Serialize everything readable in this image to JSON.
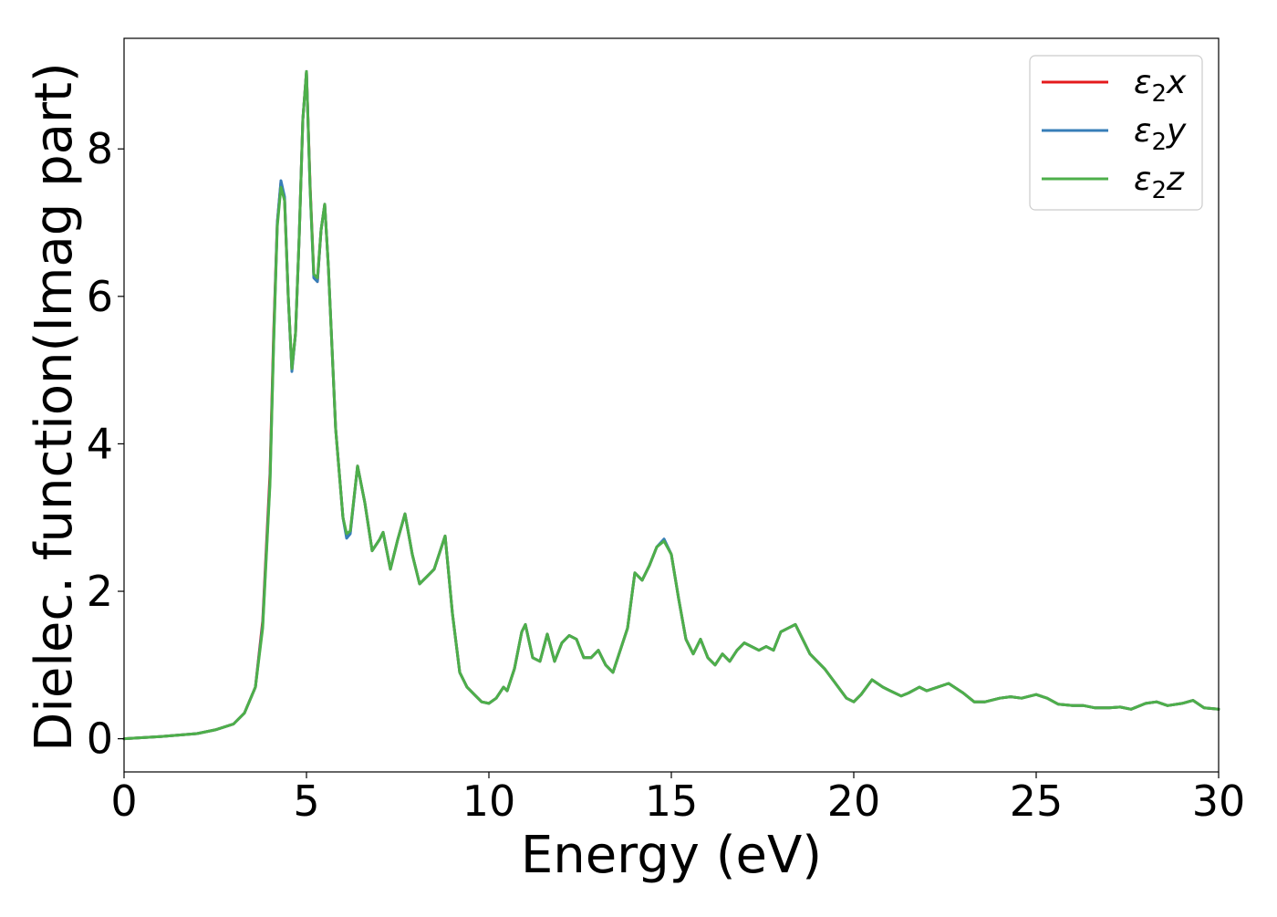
{
  "chart_data": {
    "type": "line",
    "xlabel": "Energy (eV)",
    "ylabel": "Dielec. function(Imag part)",
    "xlim": [
      0,
      30
    ],
    "ylim": [
      -0.45,
      9.5
    ],
    "xticks": [
      "0",
      "5",
      "10",
      "15",
      "20",
      "25",
      "30"
    ],
    "yticks": [
      "0",
      "2",
      "4",
      "6",
      "8"
    ],
    "grid": false,
    "legend_position": "top-right",
    "colors": {
      "x": "#e41a1c",
      "y": "#377eb8",
      "z": "#4daf4a"
    },
    "series": [
      {
        "name": "ε2x",
        "legend": {
          "base": "ε",
          "sub": "2",
          "var": "x"
        },
        "x": [
          0,
          1,
          2,
          2.5,
          3,
          3.3,
          3.6,
          3.8,
          4.0,
          4.1,
          4.2,
          4.3,
          4.4,
          4.5,
          4.6,
          4.7,
          4.8,
          4.9,
          5.0,
          5.1,
          5.2,
          5.3,
          5.4,
          5.5,
          5.6,
          5.8,
          6.0,
          6.1,
          6.2,
          6.4,
          6.6,
          6.8,
          7.0,
          7.1,
          7.3,
          7.5,
          7.7,
          7.9,
          8.1,
          8.3,
          8.5,
          8.7,
          8.8,
          9.0,
          9.2,
          9.4,
          9.6,
          9.8,
          10.0,
          10.2,
          10.4,
          10.5,
          10.7,
          10.9,
          11.0,
          11.2,
          11.4,
          11.6,
          11.8,
          12.0,
          12.2,
          12.4,
          12.6,
          12.8,
          13.0,
          13.2,
          13.4,
          13.6,
          13.8,
          14.0,
          14.2,
          14.4,
          14.6,
          14.8,
          15.0,
          15.2,
          15.4,
          15.6,
          15.8,
          16.0,
          16.2,
          16.4,
          16.6,
          16.8,
          17.0,
          17.2,
          17.4,
          17.6,
          17.8,
          18.0,
          18.2,
          18.4,
          18.6,
          18.8,
          19.0,
          19.2,
          19.5,
          19.8,
          20.0,
          20.2,
          20.5,
          20.8,
          21.0,
          21.3,
          21.5,
          21.8,
          22.0,
          22.3,
          22.6,
          23.0,
          23.3,
          23.6,
          24.0,
          24.3,
          24.6,
          25.0,
          25.3,
          25.6,
          26.0,
          26.3,
          26.6,
          27.0,
          27.3,
          27.6,
          28.0,
          28.3,
          28.6,
          29.0,
          29.3,
          29.6,
          30.0
        ],
        "y": [
          0.0,
          0.03,
          0.07,
          0.12,
          0.2,
          0.35,
          0.7,
          1.6,
          3.6,
          5.5,
          7.0,
          7.55,
          7.3,
          6.0,
          5.0,
          5.5,
          6.8,
          8.4,
          9.05,
          7.5,
          6.3,
          6.2,
          6.9,
          7.25,
          6.4,
          4.2,
          3.0,
          2.75,
          2.8,
          3.7,
          3.2,
          2.55,
          2.7,
          2.8,
          2.3,
          2.7,
          3.05,
          2.5,
          2.1,
          2.2,
          2.3,
          2.6,
          2.75,
          1.7,
          0.9,
          0.7,
          0.6,
          0.5,
          0.48,
          0.55,
          0.7,
          0.65,
          0.95,
          1.45,
          1.55,
          1.1,
          1.05,
          1.42,
          1.05,
          1.3,
          1.4,
          1.35,
          1.1,
          1.1,
          1.2,
          1.0,
          0.9,
          1.2,
          1.5,
          2.25,
          2.15,
          2.35,
          2.6,
          2.7,
          2.5,
          1.9,
          1.35,
          1.15,
          1.35,
          1.1,
          1.0,
          1.15,
          1.05,
          1.2,
          1.3,
          1.25,
          1.2,
          1.25,
          1.2,
          1.45,
          1.5,
          1.55,
          1.35,
          1.15,
          1.05,
          0.95,
          0.75,
          0.55,
          0.5,
          0.6,
          0.8,
          0.7,
          0.65,
          0.58,
          0.62,
          0.7,
          0.65,
          0.7,
          0.75,
          0.62,
          0.5,
          0.5,
          0.55,
          0.57,
          0.55,
          0.6,
          0.55,
          0.47,
          0.45,
          0.45,
          0.42,
          0.42,
          0.43,
          0.4,
          0.48,
          0.5,
          0.45,
          0.48,
          0.52,
          0.42,
          0.4
        ]
      },
      {
        "name": "ε2y",
        "legend": {
          "base": "ε",
          "sub": "2",
          "var": "y"
        },
        "x": [
          0,
          1,
          2,
          2.5,
          3,
          3.3,
          3.6,
          3.8,
          4.0,
          4.1,
          4.2,
          4.3,
          4.4,
          4.5,
          4.6,
          4.7,
          4.8,
          4.9,
          5.0,
          5.1,
          5.2,
          5.3,
          5.4,
          5.5,
          5.6,
          5.8,
          6.0,
          6.1,
          6.2,
          6.4,
          6.6,
          6.8,
          7.0,
          7.1,
          7.3,
          7.5,
          7.7,
          7.9,
          8.1,
          8.3,
          8.5,
          8.7,
          8.8,
          9.0,
          9.2,
          9.4,
          9.6,
          9.8,
          10.0,
          10.2,
          10.4,
          10.5,
          10.7,
          10.9,
          11.0,
          11.2,
          11.4,
          11.6,
          11.8,
          12.0,
          12.2,
          12.4,
          12.6,
          12.8,
          13.0,
          13.2,
          13.4,
          13.6,
          13.8,
          14.0,
          14.2,
          14.4,
          14.6,
          14.8,
          15.0,
          15.2,
          15.4,
          15.6,
          15.8,
          16.0,
          16.2,
          16.4,
          16.6,
          16.8,
          17.0,
          17.2,
          17.4,
          17.6,
          17.8,
          18.0,
          18.2,
          18.4,
          18.6,
          18.8,
          19.0,
          19.2,
          19.5,
          19.8,
          20.0,
          20.2,
          20.5,
          20.8,
          21.0,
          21.3,
          21.5,
          21.8,
          22.0,
          22.3,
          22.6,
          23.0,
          23.3,
          23.6,
          24.0,
          24.3,
          24.6,
          25.0,
          25.3,
          25.6,
          26.0,
          26.3,
          26.6,
          27.0,
          27.3,
          27.6,
          28.0,
          28.3,
          28.6,
          29.0,
          29.3,
          29.6,
          30.0
        ],
        "y": [
          0.0,
          0.03,
          0.07,
          0.12,
          0.2,
          0.35,
          0.7,
          1.55,
          3.5,
          5.4,
          7.0,
          7.57,
          7.35,
          6.0,
          4.98,
          5.5,
          6.8,
          8.4,
          9.05,
          7.45,
          6.25,
          6.2,
          6.9,
          7.25,
          6.4,
          4.2,
          3.0,
          2.72,
          2.78,
          3.7,
          3.2,
          2.55,
          2.7,
          2.8,
          2.3,
          2.7,
          3.05,
          2.5,
          2.1,
          2.2,
          2.3,
          2.6,
          2.75,
          1.7,
          0.9,
          0.7,
          0.6,
          0.5,
          0.48,
          0.55,
          0.7,
          0.65,
          0.95,
          1.45,
          1.55,
          1.1,
          1.05,
          1.42,
          1.05,
          1.3,
          1.4,
          1.35,
          1.1,
          1.1,
          1.2,
          1.0,
          0.9,
          1.2,
          1.5,
          2.25,
          2.15,
          2.35,
          2.6,
          2.71,
          2.5,
          1.9,
          1.35,
          1.15,
          1.35,
          1.1,
          1.0,
          1.15,
          1.05,
          1.2,
          1.3,
          1.25,
          1.2,
          1.25,
          1.2,
          1.45,
          1.5,
          1.55,
          1.35,
          1.15,
          1.05,
          0.95,
          0.75,
          0.55,
          0.5,
          0.6,
          0.8,
          0.7,
          0.65,
          0.58,
          0.62,
          0.7,
          0.65,
          0.7,
          0.75,
          0.62,
          0.5,
          0.5,
          0.55,
          0.57,
          0.55,
          0.6,
          0.55,
          0.47,
          0.45,
          0.45,
          0.42,
          0.42,
          0.43,
          0.4,
          0.48,
          0.5,
          0.45,
          0.48,
          0.52,
          0.42,
          0.4
        ]
      },
      {
        "name": "ε2z",
        "legend": {
          "base": "ε",
          "sub": "2",
          "var": "z"
        },
        "x": [
          0,
          1,
          2,
          2.5,
          3,
          3.3,
          3.6,
          3.8,
          4.0,
          4.1,
          4.2,
          4.3,
          4.4,
          4.5,
          4.6,
          4.7,
          4.8,
          4.9,
          5.0,
          5.1,
          5.2,
          5.3,
          5.4,
          5.5,
          5.6,
          5.8,
          6.0,
          6.1,
          6.2,
          6.4,
          6.6,
          6.8,
          7.0,
          7.1,
          7.3,
          7.5,
          7.7,
          7.9,
          8.1,
          8.3,
          8.5,
          8.7,
          8.8,
          9.0,
          9.2,
          9.4,
          9.6,
          9.8,
          10.0,
          10.2,
          10.4,
          10.5,
          10.7,
          10.9,
          11.0,
          11.2,
          11.4,
          11.6,
          11.8,
          12.0,
          12.2,
          12.4,
          12.6,
          12.8,
          13.0,
          13.2,
          13.4,
          13.6,
          13.8,
          14.0,
          14.2,
          14.4,
          14.6,
          14.8,
          15.0,
          15.2,
          15.4,
          15.6,
          15.8,
          16.0,
          16.2,
          16.4,
          16.6,
          16.8,
          17.0,
          17.2,
          17.4,
          17.6,
          17.8,
          18.0,
          18.2,
          18.4,
          18.6,
          18.8,
          19.0,
          19.2,
          19.5,
          19.8,
          20.0,
          20.2,
          20.5,
          20.8,
          21.0,
          21.3,
          21.5,
          21.8,
          22.0,
          22.3,
          22.6,
          23.0,
          23.3,
          23.6,
          24.0,
          24.3,
          24.6,
          25.0,
          25.3,
          25.6,
          26.0,
          26.3,
          26.6,
          27.0,
          27.3,
          27.6,
          28.0,
          28.3,
          28.6,
          29.0,
          29.3,
          29.6,
          30.0
        ],
        "y": [
          0.0,
          0.03,
          0.07,
          0.12,
          0.2,
          0.35,
          0.7,
          1.5,
          3.45,
          5.35,
          6.95,
          7.48,
          7.3,
          6.0,
          5.02,
          5.5,
          6.8,
          8.4,
          9.05,
          7.45,
          6.3,
          6.25,
          6.9,
          7.25,
          6.4,
          4.2,
          3.0,
          2.78,
          2.82,
          3.7,
          3.2,
          2.55,
          2.7,
          2.8,
          2.3,
          2.7,
          3.05,
          2.5,
          2.1,
          2.2,
          2.3,
          2.6,
          2.75,
          1.7,
          0.9,
          0.7,
          0.6,
          0.5,
          0.48,
          0.55,
          0.7,
          0.65,
          0.95,
          1.45,
          1.55,
          1.1,
          1.05,
          1.42,
          1.05,
          1.3,
          1.4,
          1.35,
          1.1,
          1.1,
          1.2,
          1.0,
          0.9,
          1.2,
          1.5,
          2.25,
          2.15,
          2.35,
          2.6,
          2.68,
          2.5,
          1.9,
          1.35,
          1.15,
          1.35,
          1.1,
          1.0,
          1.15,
          1.05,
          1.2,
          1.3,
          1.25,
          1.2,
          1.25,
          1.2,
          1.45,
          1.5,
          1.55,
          1.35,
          1.15,
          1.05,
          0.95,
          0.75,
          0.55,
          0.5,
          0.6,
          0.8,
          0.7,
          0.65,
          0.58,
          0.62,
          0.7,
          0.65,
          0.7,
          0.75,
          0.62,
          0.5,
          0.5,
          0.55,
          0.57,
          0.55,
          0.6,
          0.55,
          0.47,
          0.45,
          0.45,
          0.42,
          0.42,
          0.43,
          0.4,
          0.48,
          0.5,
          0.45,
          0.48,
          0.52,
          0.42,
          0.4
        ]
      }
    ]
  }
}
